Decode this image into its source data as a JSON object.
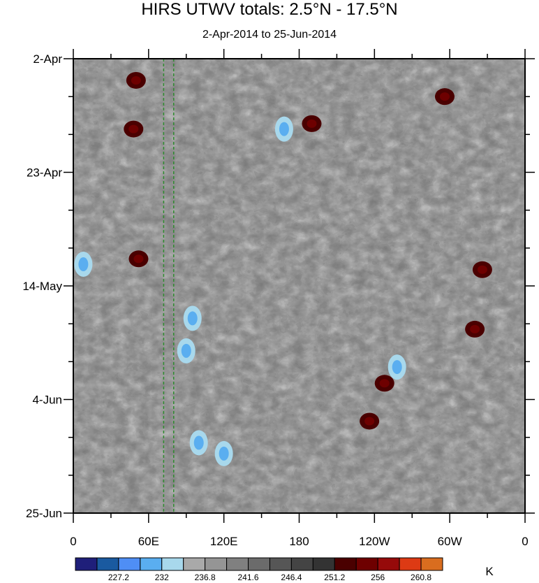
{
  "title": "HIRS UTWV totals: 2.5°N - 17.5°N",
  "subtitle": "2-Apr-2014 to 25-Jun-2014",
  "chart_data": {
    "type": "heatmap",
    "x_tick_labels": [
      "0",
      "60E",
      "120E",
      "180",
      "120W",
      "60W",
      "0"
    ],
    "x_ticks_deg": [
      0,
      60,
      120,
      180,
      240,
      300,
      360
    ],
    "x_range_deg": [
      0,
      360
    ],
    "y_tick_labels": [
      "2-Apr",
      "23-Apr",
      "14-May",
      "4-Jun",
      "25-Jun"
    ],
    "y_range": [
      "2-Apr-2014",
      "25-Jun-2014"
    ],
    "y_orientation": "time increases downward",
    "colorbar": {
      "unit": "K",
      "labels": [
        "227.2",
        "232",
        "236.8",
        "241.6",
        "246.4",
        "251.2",
        "256",
        "260.8"
      ],
      "colors": [
        "#1f1f7a",
        "#1a5aa0",
        "#4f8ef5",
        "#5aaef0",
        "#a8d8ec",
        "#a9a9a9",
        "#959595",
        "#808080",
        "#6b6b6b",
        "#565656",
        "#444444",
        "#333333",
        "#4a0000",
        "#6e0000",
        "#960a0a",
        "#dd3a14",
        "#d96d1f"
      ]
    },
    "features": {
      "reference_lines_deg": [
        72,
        80
      ],
      "reference_line_color": "#2e8b2e"
    },
    "dark_red_regions": [
      {
        "lon": 50,
        "date": "6-Apr"
      },
      {
        "lon": 48,
        "date": "15-Apr"
      },
      {
        "lon": 52,
        "date": "9-May"
      },
      {
        "lon": 248,
        "date": "1-Jun"
      },
      {
        "lon": 236,
        "date": "8-Jun"
      },
      {
        "lon": 326,
        "date": "11-May"
      },
      {
        "lon": 320,
        "date": "22-May"
      },
      {
        "lon": 296,
        "date": "9-Apr"
      },
      {
        "lon": 190,
        "date": "14-Apr"
      }
    ],
    "blue_regions": [
      {
        "lon": 95,
        "date": "20-May"
      },
      {
        "lon": 90,
        "date": "26-May"
      },
      {
        "lon": 100,
        "date": "12-Jun"
      },
      {
        "lon": 120,
        "date": "14-Jun"
      },
      {
        "lon": 168,
        "date": "15-Apr"
      },
      {
        "lon": 258,
        "date": "29-May"
      },
      {
        "lon": 8,
        "date": "10-May"
      }
    ]
  }
}
